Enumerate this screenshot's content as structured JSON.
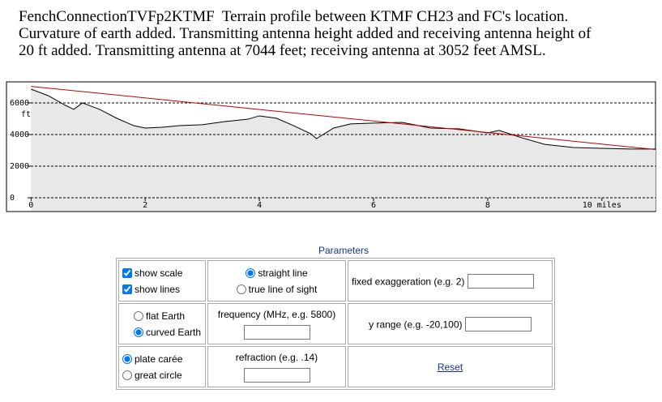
{
  "header": {
    "text": "FenchConnectionTVFp2KTMF  Terrain profile between KTMF CH23 and FC's location. Curvature of earth added. Transmitting antenna height added and receiving antenna height of 20 ft added. Transmitting antenna at 7044 feet; receiving antenna at 3052 feet AMSL."
  },
  "chart_data": {
    "type": "area",
    "y_unit": "ft",
    "xlim": [
      -0.43,
      10.94
    ],
    "ylim": [
      -870,
      7330
    ],
    "xticks": [
      0,
      2,
      4,
      6,
      8,
      {
        "value": 10,
        "label": "10 miles"
      }
    ],
    "yticks": [
      0,
      2000,
      4000,
      6000
    ],
    "grid": true,
    "terrain": {
      "color": "#000000",
      "fill": "#e8e8e8",
      "x": [
        0,
        0.3,
        0.6,
        0.75,
        0.9,
        1.2,
        1.5,
        1.8,
        2.0,
        2.3,
        2.6,
        3.0,
        3.4,
        3.8,
        4.0,
        4.3,
        4.6,
        4.9,
        5.0,
        5.3,
        5.6,
        6.0,
        6.5,
        7.0,
        7.5,
        8.0,
        8.2,
        8.6,
        9.0,
        9.5,
        10.0,
        10.5,
        10.94
      ],
      "values": [
        6870,
        6460,
        5850,
        5590,
        6000,
        5590,
        5030,
        4560,
        4410,
        4460,
        4560,
        4620,
        4820,
        4970,
        5180,
        5030,
        4560,
        4050,
        3740,
        4410,
        4670,
        4720,
        4770,
        4410,
        4360,
        4100,
        4260,
        3790,
        3380,
        3180,
        3130,
        3080,
        3080
      ]
    },
    "sight_line": {
      "color": "#c00000",
      "x": [
        0,
        10.94
      ],
      "values": [
        7044,
        3052
      ]
    }
  },
  "parameters": {
    "title": "Parameters",
    "show_scale": {
      "label": "show scale",
      "checked": true
    },
    "show_lines": {
      "label": "show lines",
      "checked": true
    },
    "straight_line": {
      "label": "straight line",
      "checked": true
    },
    "true_line_of_sight": {
      "label": "true line of sight",
      "checked": false
    },
    "fixed_exaggeration": {
      "label": "fixed exaggeration (e.g. 2)"
    },
    "flat_earth": {
      "label": "flat Earth",
      "checked": false
    },
    "curved_earth": {
      "label": "curved Earth",
      "checked": true
    },
    "frequency": {
      "label": "frequency (MHz, e.g. 5800)"
    },
    "y_range": {
      "label": "y range (e.g. -20,100)"
    },
    "plate_carree": {
      "label": "plate carée",
      "checked": true
    },
    "great_circle": {
      "label": "great circle",
      "checked": false
    },
    "refraction": {
      "label": "refraction (e.g. .14)"
    },
    "reset": {
      "label": "Reset"
    }
  }
}
